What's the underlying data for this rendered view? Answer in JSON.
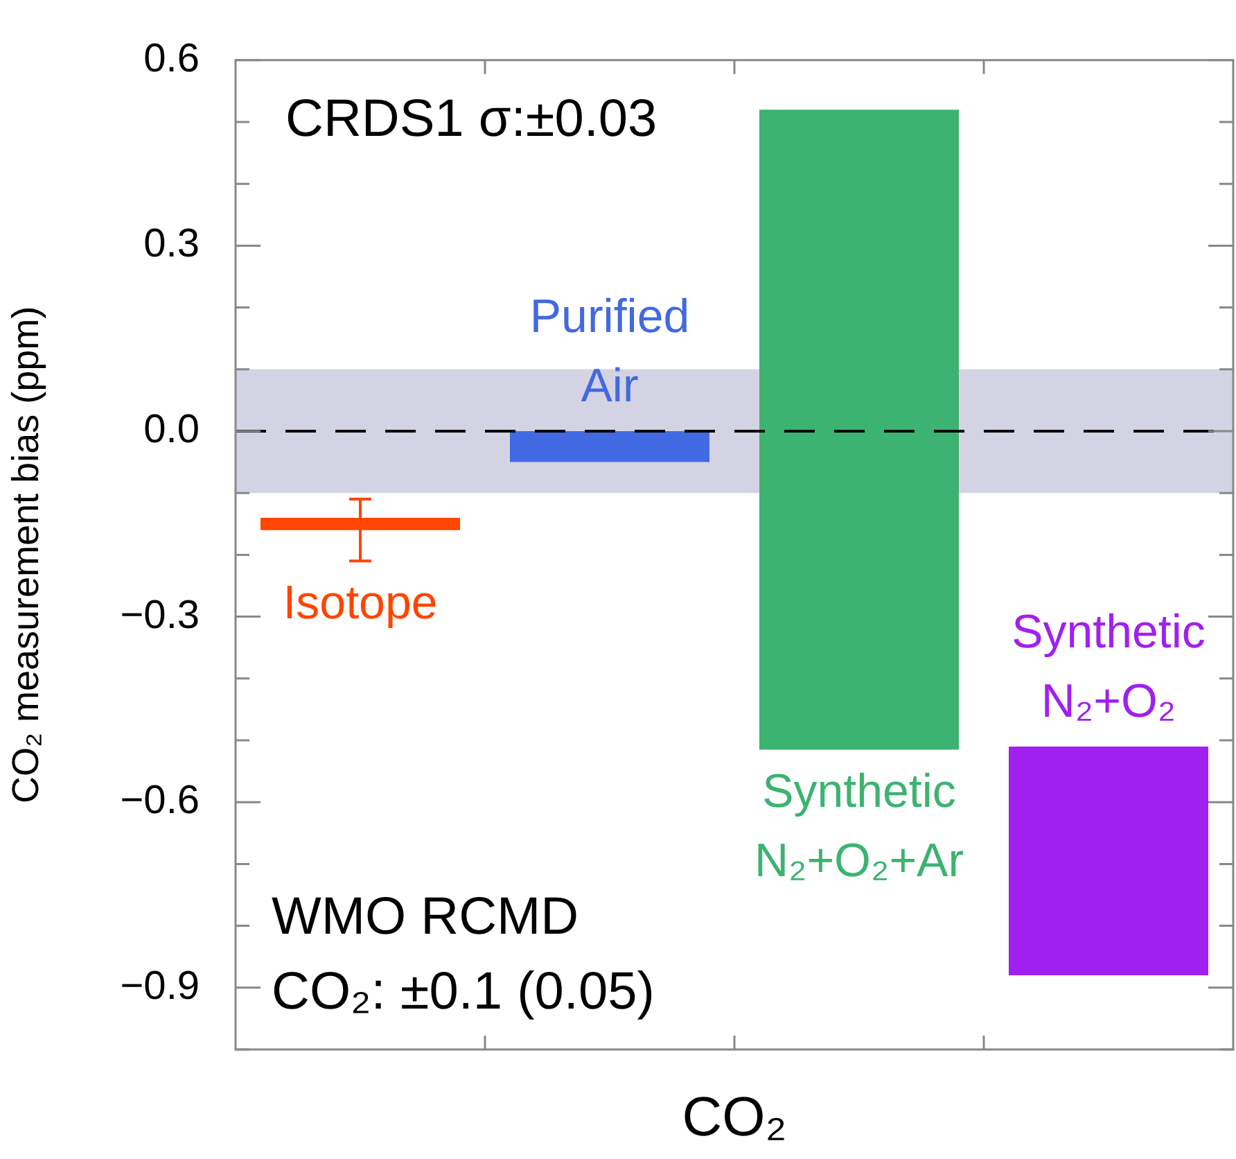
{
  "chart_data": {
    "type": "bar",
    "xlabel": "CO₂",
    "ylabel": "CO₂ measurement bias (ppm)",
    "categories": [
      null,
      null,
      null,
      null
    ],
    "base": [
      -0.14,
      0,
      -0.515,
      -0.51
    ],
    "values": [
      -0.02,
      -0.05,
      1.035,
      -0.37
    ],
    "colors": [
      "#ff4500",
      "#4169e1",
      "#3cb371",
      "#a020f0"
    ],
    "errors": [
      0.05,
      null,
      null,
      null
    ],
    "ylim": [
      -1.0,
      0.6
    ],
    "yticks": [
      {
        "value": -1.0,
        "label": null
      },
      {
        "value": -0.9,
        "label": "−0.9"
      },
      {
        "value": -0.8,
        "label": null
      },
      {
        "value": -0.7,
        "label": null
      },
      {
        "value": -0.6,
        "label": "−0.6"
      },
      {
        "value": -0.5,
        "label": null
      },
      {
        "value": -0.4,
        "label": null
      },
      {
        "value": -0.3,
        "label": "−0.3"
      },
      {
        "value": -0.2,
        "label": null
      },
      {
        "value": -0.1,
        "label": null
      },
      {
        "value": 0,
        "label": "0.0"
      },
      {
        "value": 0.1,
        "label": null
      },
      {
        "value": 0.2,
        "label": null
      },
      {
        "value": 0.3,
        "label": "0.3"
      },
      {
        "value": 0.4,
        "label": null
      },
      {
        "value": 0.5,
        "label": null
      },
      {
        "value": 0.6,
        "label": "0.6"
      }
    ],
    "tick_labels": "y",
    "grid": false,
    "legend": false,
    "ref_lines": [
      {
        "axis": "y",
        "value": 0,
        "color": "#000000",
        "line_style": "dashed"
      }
    ],
    "bands": [
      {
        "axis": "y",
        "from": -0.1,
        "to": 0.1,
        "color": "#d3d3e3"
      }
    ],
    "annotations": [
      "CRDS1 σ:±0.03",
      "WMO RCMD\nCO₂: ±0.1 (0.05)",
      "Isotope",
      "Purified\nAir",
      "Synthetic\nN₂+O₂+Ar",
      "Synthetic\nN₂+O₂"
    ]
  }
}
